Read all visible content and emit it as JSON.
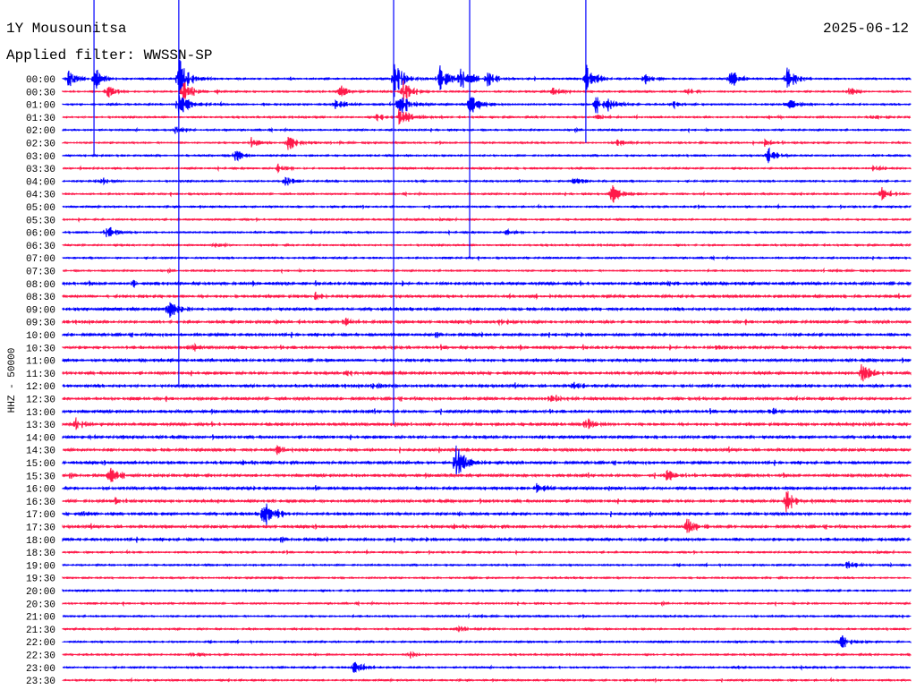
{
  "chart_data": {
    "type": "line",
    "title": "1Y Mousounitsa",
    "date": "2025-06-12",
    "filter_label": "Applied filter: WWSSN-SP",
    "ylabel": "HHZ - 50000",
    "row_minutes": 30,
    "row_labels": [
      "00:00",
      "00:30",
      "01:00",
      "01:30",
      "02:00",
      "02:30",
      "03:00",
      "03:30",
      "04:00",
      "04:30",
      "05:00",
      "05:30",
      "06:00",
      "06:30",
      "07:00",
      "07:30",
      "08:00",
      "08:30",
      "09:00",
      "09:30",
      "10:00",
      "10:30",
      "11:00",
      "11:30",
      "12:00",
      "12:30",
      "13:00",
      "13:30",
      "14:00",
      "14:30",
      "15:00",
      "15:30",
      "16:00",
      "16:30",
      "17:00",
      "17:30",
      "18:00",
      "18:30",
      "19:00",
      "19:30",
      "20:00",
      "20:30",
      "21:00",
      "21:30",
      "22:00",
      "22:30",
      "23:00",
      "23:30"
    ],
    "series_colors": [
      "#0000ff",
      "#ff1a4a"
    ],
    "events": [
      [
        0,
        0.16,
        15
      ],
      [
        0,
        1.11,
        14
      ],
      [
        0,
        4.11,
        28
      ],
      [
        0,
        11.71,
        25
      ],
      [
        0,
        13.29,
        20
      ],
      [
        0,
        14.08,
        20
      ],
      [
        0,
        15.03,
        10
      ],
      [
        0,
        18.51,
        18
      ],
      [
        0,
        20.57,
        9
      ],
      [
        0,
        23.58,
        14
      ],
      [
        0,
        25.63,
        14
      ],
      [
        1,
        1.58,
        8
      ],
      [
        1,
        4.27,
        15
      ],
      [
        1,
        9.75,
        10
      ],
      [
        1,
        12.03,
        15
      ],
      [
        1,
        17.34,
        6
      ],
      [
        1,
        22.0,
        4
      ],
      [
        1,
        27.79,
        6
      ],
      [
        2,
        4.11,
        18
      ],
      [
        2,
        9.65,
        8
      ],
      [
        2,
        11.87,
        20
      ],
      [
        2,
        14.4,
        15
      ],
      [
        2,
        18.83,
        14
      ],
      [
        2,
        19.3,
        10
      ],
      [
        2,
        21.52,
        6
      ],
      [
        2,
        25.57,
        10
      ],
      [
        3,
        11.08,
        6
      ],
      [
        3,
        11.87,
        18
      ],
      [
        3,
        18.83,
        6
      ],
      [
        3,
        28.64,
        3
      ],
      [
        4,
        3.96,
        5
      ],
      [
        5,
        6.65,
        7
      ],
      [
        5,
        7.97,
        10
      ],
      [
        5,
        19.62,
        4
      ],
      [
        5,
        24.84,
        5
      ],
      [
        6,
        6.08,
        8
      ],
      [
        6,
        24.91,
        12
      ],
      [
        7,
        7.59,
        6
      ],
      [
        7,
        28.64,
        5
      ],
      [
        8,
        1.36,
        5
      ],
      [
        8,
        7.85,
        8
      ],
      [
        8,
        18.04,
        5
      ],
      [
        9,
        19.37,
        14
      ],
      [
        9,
        28.96,
        10
      ],
      [
        12,
        1.52,
        10
      ],
      [
        12,
        15.66,
        4
      ],
      [
        13,
        5.32,
        5
      ],
      [
        16,
        2.44,
        4
      ],
      [
        16,
        21.36,
        4
      ],
      [
        17,
        8.92,
        5
      ],
      [
        18,
        3.73,
        14
      ],
      [
        19,
        9.97,
        5
      ],
      [
        19,
        15.44,
        4
      ],
      [
        21,
        4.43,
        6
      ],
      [
        21,
        23.1,
        5
      ],
      [
        23,
        9.97,
        4
      ],
      [
        23,
        28.23,
        14
      ],
      [
        24,
        10.92,
        6
      ],
      [
        24,
        18.04,
        6
      ],
      [
        25,
        17.25,
        6
      ],
      [
        26,
        25.0,
        5
      ],
      [
        27,
        0.38,
        9
      ],
      [
        27,
        18.51,
        10
      ],
      [
        27,
        28.32,
        4
      ],
      [
        28,
        0.79,
        5
      ],
      [
        29,
        7.59,
        6
      ],
      [
        30,
        13.92,
        25
      ],
      [
        31,
        1.65,
        13
      ],
      [
        31,
        21.36,
        6
      ],
      [
        32,
        16.77,
        5
      ],
      [
        33,
        1.84,
        6
      ],
      [
        33,
        25.57,
        20
      ],
      [
        34,
        0.63,
        5
      ],
      [
        34,
        7.12,
        25
      ],
      [
        35,
        22.06,
        13
      ],
      [
        36,
        28.17,
        3
      ],
      [
        38,
        27.69,
        6
      ],
      [
        43,
        13.99,
        6
      ],
      [
        44,
        27.53,
        10
      ],
      [
        45,
        4.49,
        4
      ],
      [
        45,
        12.18,
        6
      ],
      [
        46,
        10.28,
        10
      ]
    ],
    "spikes": [
      [
        0,
        4.11,
        24
      ],
      [
        0,
        11.71,
        27
      ],
      [
        0,
        14.4,
        14
      ],
      [
        0,
        18.51,
        5
      ],
      [
        0,
        1.11,
        6
      ]
    ]
  }
}
